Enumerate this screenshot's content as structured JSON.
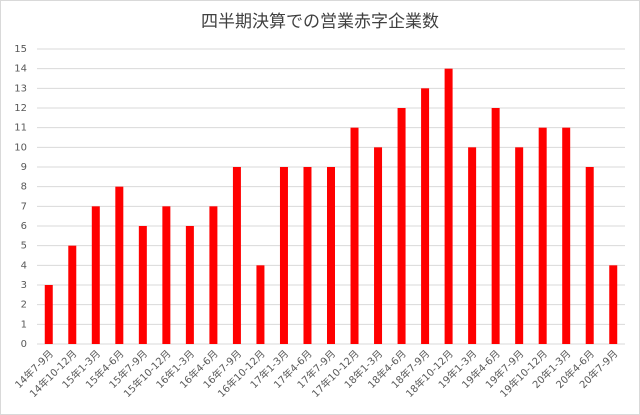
{
  "chart_data": {
    "type": "bar",
    "title": "四半期決算での営業赤字企業数",
    "categories": [
      "14年7-9月",
      "14年10-12月",
      "15年1-3月",
      "15年4-6月",
      "15年7-9月",
      "15年10-12月",
      "16年1-3月",
      "16年4-6月",
      "16年7-9月",
      "16年10-12月",
      "17年1-3月",
      "17年4-6月",
      "17年7-9月",
      "17年10-12月",
      "18年1-3月",
      "18年4-6月",
      "18年7-9月",
      "18年10-12月",
      "19年1-3月",
      "19年4-6月",
      "19年7-9月",
      "19年10-12月",
      "20年1-3月",
      "20年4-6月",
      "20年7-9月"
    ],
    "values": [
      3,
      5,
      7,
      8,
      6,
      7,
      6,
      7,
      9,
      4,
      9,
      9,
      9,
      11,
      10,
      12,
      13,
      14,
      10,
      12,
      10,
      11,
      11,
      9,
      4
    ],
    "color": "#ff0000",
    "ylim": [
      0,
      15
    ],
    "yticks": [
      0,
      1,
      2,
      3,
      4,
      5,
      6,
      7,
      8,
      9,
      10,
      11,
      12,
      13,
      14,
      15
    ],
    "grid": true
  }
}
